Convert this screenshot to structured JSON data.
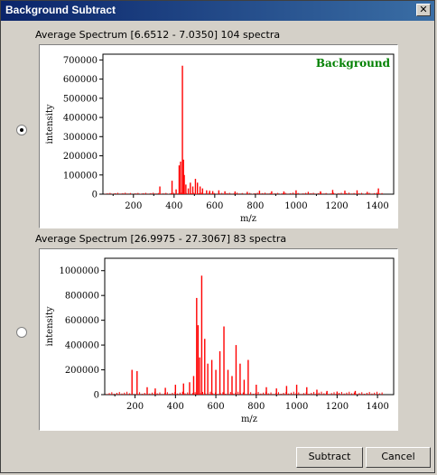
{
  "window": {
    "title": "Background Subtract",
    "close_glyph": "✕"
  },
  "buttons": {
    "subtract": "Subtract",
    "cancel": "Cancel"
  },
  "colors": {
    "series": "#ff0000",
    "background_label": "#008000",
    "titlebar": "#0a246a"
  },
  "chart_data": [
    {
      "type": "bar",
      "title": "Average Spectrum [6.6512 - 7.0350] 104 spectra",
      "annotation": "Background",
      "selected": true,
      "xlabel": "m/z",
      "ylabel": "intensity",
      "xlim": [
        50,
        1480
      ],
      "ylim": [
        0,
        730000
      ],
      "x_ticks": [
        200,
        400,
        600,
        800,
        1000,
        1200,
        1400
      ],
      "y_ticks": [
        0,
        100000,
        200000,
        300000,
        400000,
        500000,
        600000,
        700000
      ],
      "x_tick_labels": [
        "200",
        "400",
        "600",
        "800",
        "1000",
        "1200",
        "1400"
      ],
      "y_tick_labels": [
        "0",
        "100000",
        "200000",
        "300000",
        "400000",
        "500000",
        "600000",
        "700000"
      ],
      "series": [
        {
          "x": [
            330,
            390,
            410,
            425,
            432,
            441,
            446,
            450,
            458,
            470,
            480,
            492,
            505,
            515,
            528,
            540,
            560,
            575,
            590,
            620,
            650,
            700,
            760,
            820,
            880,
            940,
            1000,
            1060,
            1120,
            1180,
            1240,
            1300,
            1350,
            1405
          ],
          "y": [
            40000,
            70000,
            25000,
            150000,
            170000,
            670000,
            180000,
            100000,
            50000,
            30000,
            60000,
            40000,
            80000,
            60000,
            40000,
            30000,
            20000,
            18000,
            16000,
            20000,
            15000,
            14000,
            12000,
            18000,
            15000,
            14000,
            20000,
            12000,
            15000,
            22000,
            18000,
            20000,
            12000,
            30000
          ]
        }
      ]
    },
    {
      "type": "bar",
      "title": "Average Spectrum [26.9975 - 27.3067] 83 spectra",
      "selected": false,
      "xlabel": "m/z",
      "ylabel": "intensity",
      "xlim": [
        50,
        1480
      ],
      "ylim": [
        0,
        1100000
      ],
      "x_ticks": [
        200,
        400,
        600,
        800,
        1000,
        1200,
        1400
      ],
      "y_ticks": [
        0,
        200000,
        400000,
        600000,
        800000,
        1000000
      ],
      "x_tick_labels": [
        "200",
        "400",
        "600",
        "800",
        "1000",
        "1200",
        "1400"
      ],
      "y_tick_labels": [
        "0",
        "200000",
        "400000",
        "600000",
        "800000",
        "1000000"
      ],
      "series": [
        {
          "x": [
            185,
            210,
            260,
            300,
            350,
            400,
            440,
            470,
            490,
            505,
            512,
            520,
            530,
            545,
            560,
            580,
            600,
            620,
            640,
            660,
            680,
            700,
            720,
            740,
            760,
            800,
            850,
            900,
            950,
            1000,
            1050,
            1100,
            1150,
            1200,
            1290
          ],
          "y": [
            200000,
            190000,
            60000,
            50000,
            55000,
            80000,
            90000,
            100000,
            150000,
            780000,
            560000,
            300000,
            960000,
            450000,
            250000,
            280000,
            200000,
            350000,
            550000,
            200000,
            150000,
            400000,
            250000,
            120000,
            280000,
            80000,
            60000,
            50000,
            70000,
            80000,
            60000,
            40000,
            30000,
            25000,
            30000
          ]
        }
      ]
    }
  ]
}
